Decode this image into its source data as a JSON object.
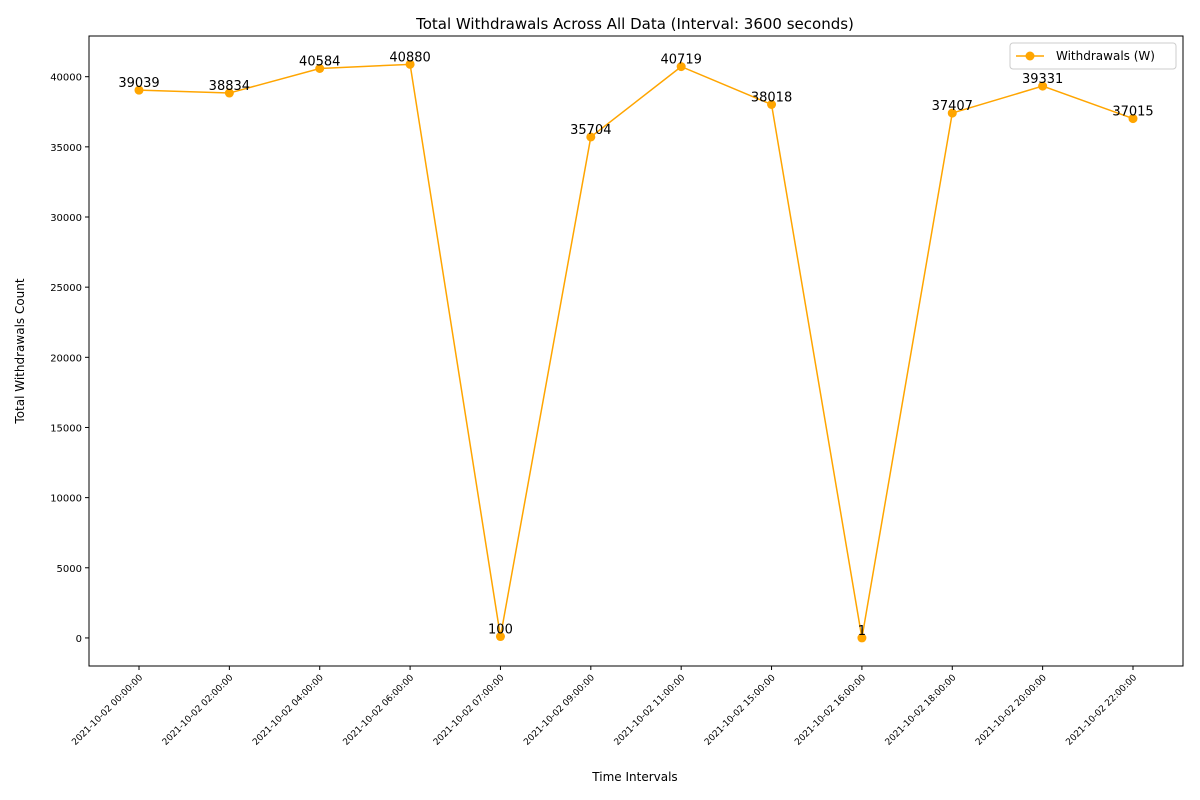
{
  "chart_data": {
    "type": "line",
    "title": "Total Withdrawals Across All Data (Interval: 3600 seconds)",
    "xlabel": "Time Intervals",
    "ylabel": "Total Withdrawals Count",
    "categories": [
      "2021-10-02 00:00:00",
      "2021-10-02 02:00:00",
      "2021-10-02 04:00:00",
      "2021-10-02 06:00:00",
      "2021-10-02 07:00:00",
      "2021-10-02 09:00:00",
      "2021-10-02 11:00:00",
      "2021-10-02 15:00:00",
      "2021-10-02 16:00:00",
      "2021-10-02 18:00:00",
      "2021-10-02 20:00:00",
      "2021-10-02 22:00:00"
    ],
    "series": [
      {
        "name": "Withdrawals (W)",
        "color": "#ffa500",
        "marker": "circle",
        "values": [
          39039,
          38834,
          40584,
          40880,
          100,
          35704,
          40719,
          38018,
          1,
          37407,
          39331,
          37015
        ]
      }
    ],
    "ylim": [
      -2000,
      42900
    ],
    "yticks": [
      0,
      5000,
      10000,
      15000,
      20000,
      25000,
      30000,
      35000,
      40000
    ],
    "grid": false,
    "legend": "top-right",
    "data_labels": true
  }
}
